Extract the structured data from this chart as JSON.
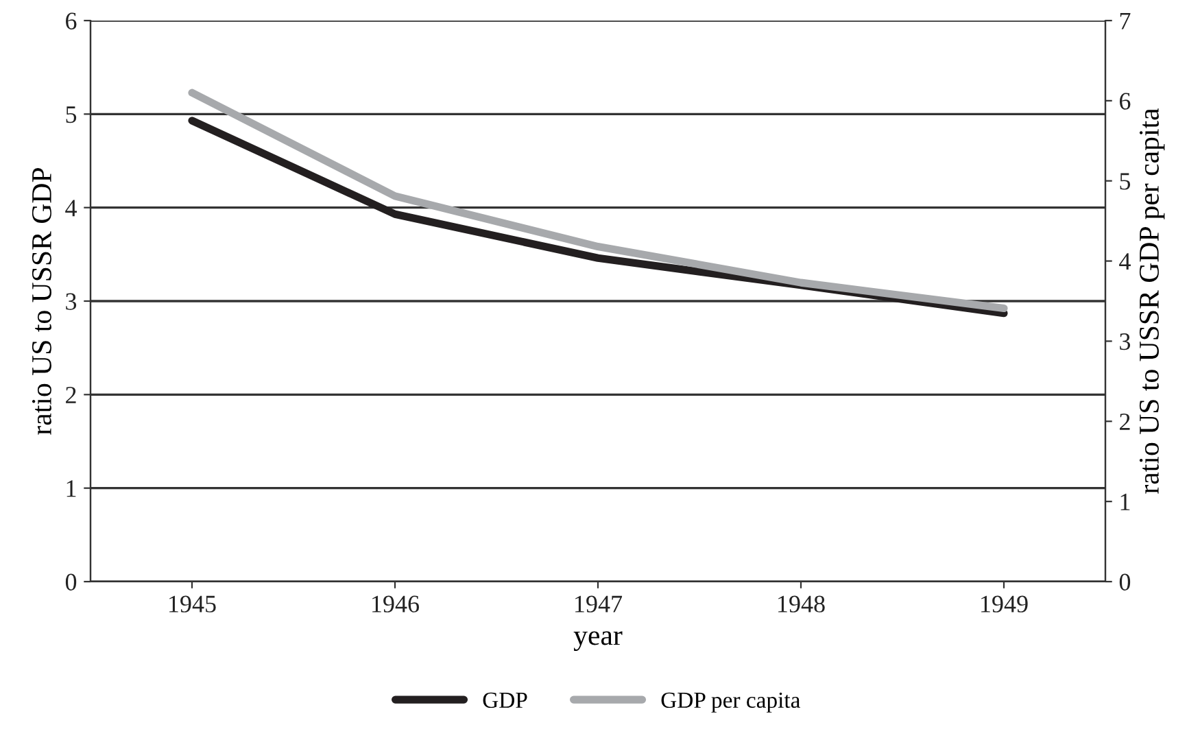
{
  "chart_data": {
    "type": "line",
    "xlabel": "year",
    "ylabel": "ratio US to USSR GDP",
    "y2label": "ratio US to USSR GDP per capita",
    "x": [
      1945,
      1946,
      1947,
      1948,
      1949
    ],
    "series": [
      {
        "name": "GDP",
        "color": "#231f20",
        "values": [
          4.93,
          3.93,
          3.46,
          3.17,
          2.87
        ]
      },
      {
        "name": "GDP per capita",
        "color": "#a7a9ac",
        "values": [
          6.1,
          4.81,
          4.18,
          3.73,
          3.41
        ],
        "axis": "y2"
      }
    ],
    "xlim": [
      1944.5,
      1949.5
    ],
    "xticks": [
      1945,
      1946,
      1947,
      1948,
      1949
    ],
    "ylim": [
      0,
      6
    ],
    "yticks": [
      0,
      1,
      2,
      3,
      4,
      5,
      6
    ],
    "y2lim": [
      0,
      7
    ],
    "y2ticks": [
      0,
      1,
      2,
      3,
      4,
      5,
      6,
      7
    ],
    "grid": "y",
    "legend": "bottom",
    "marker": "none",
    "line_style": "solid"
  }
}
